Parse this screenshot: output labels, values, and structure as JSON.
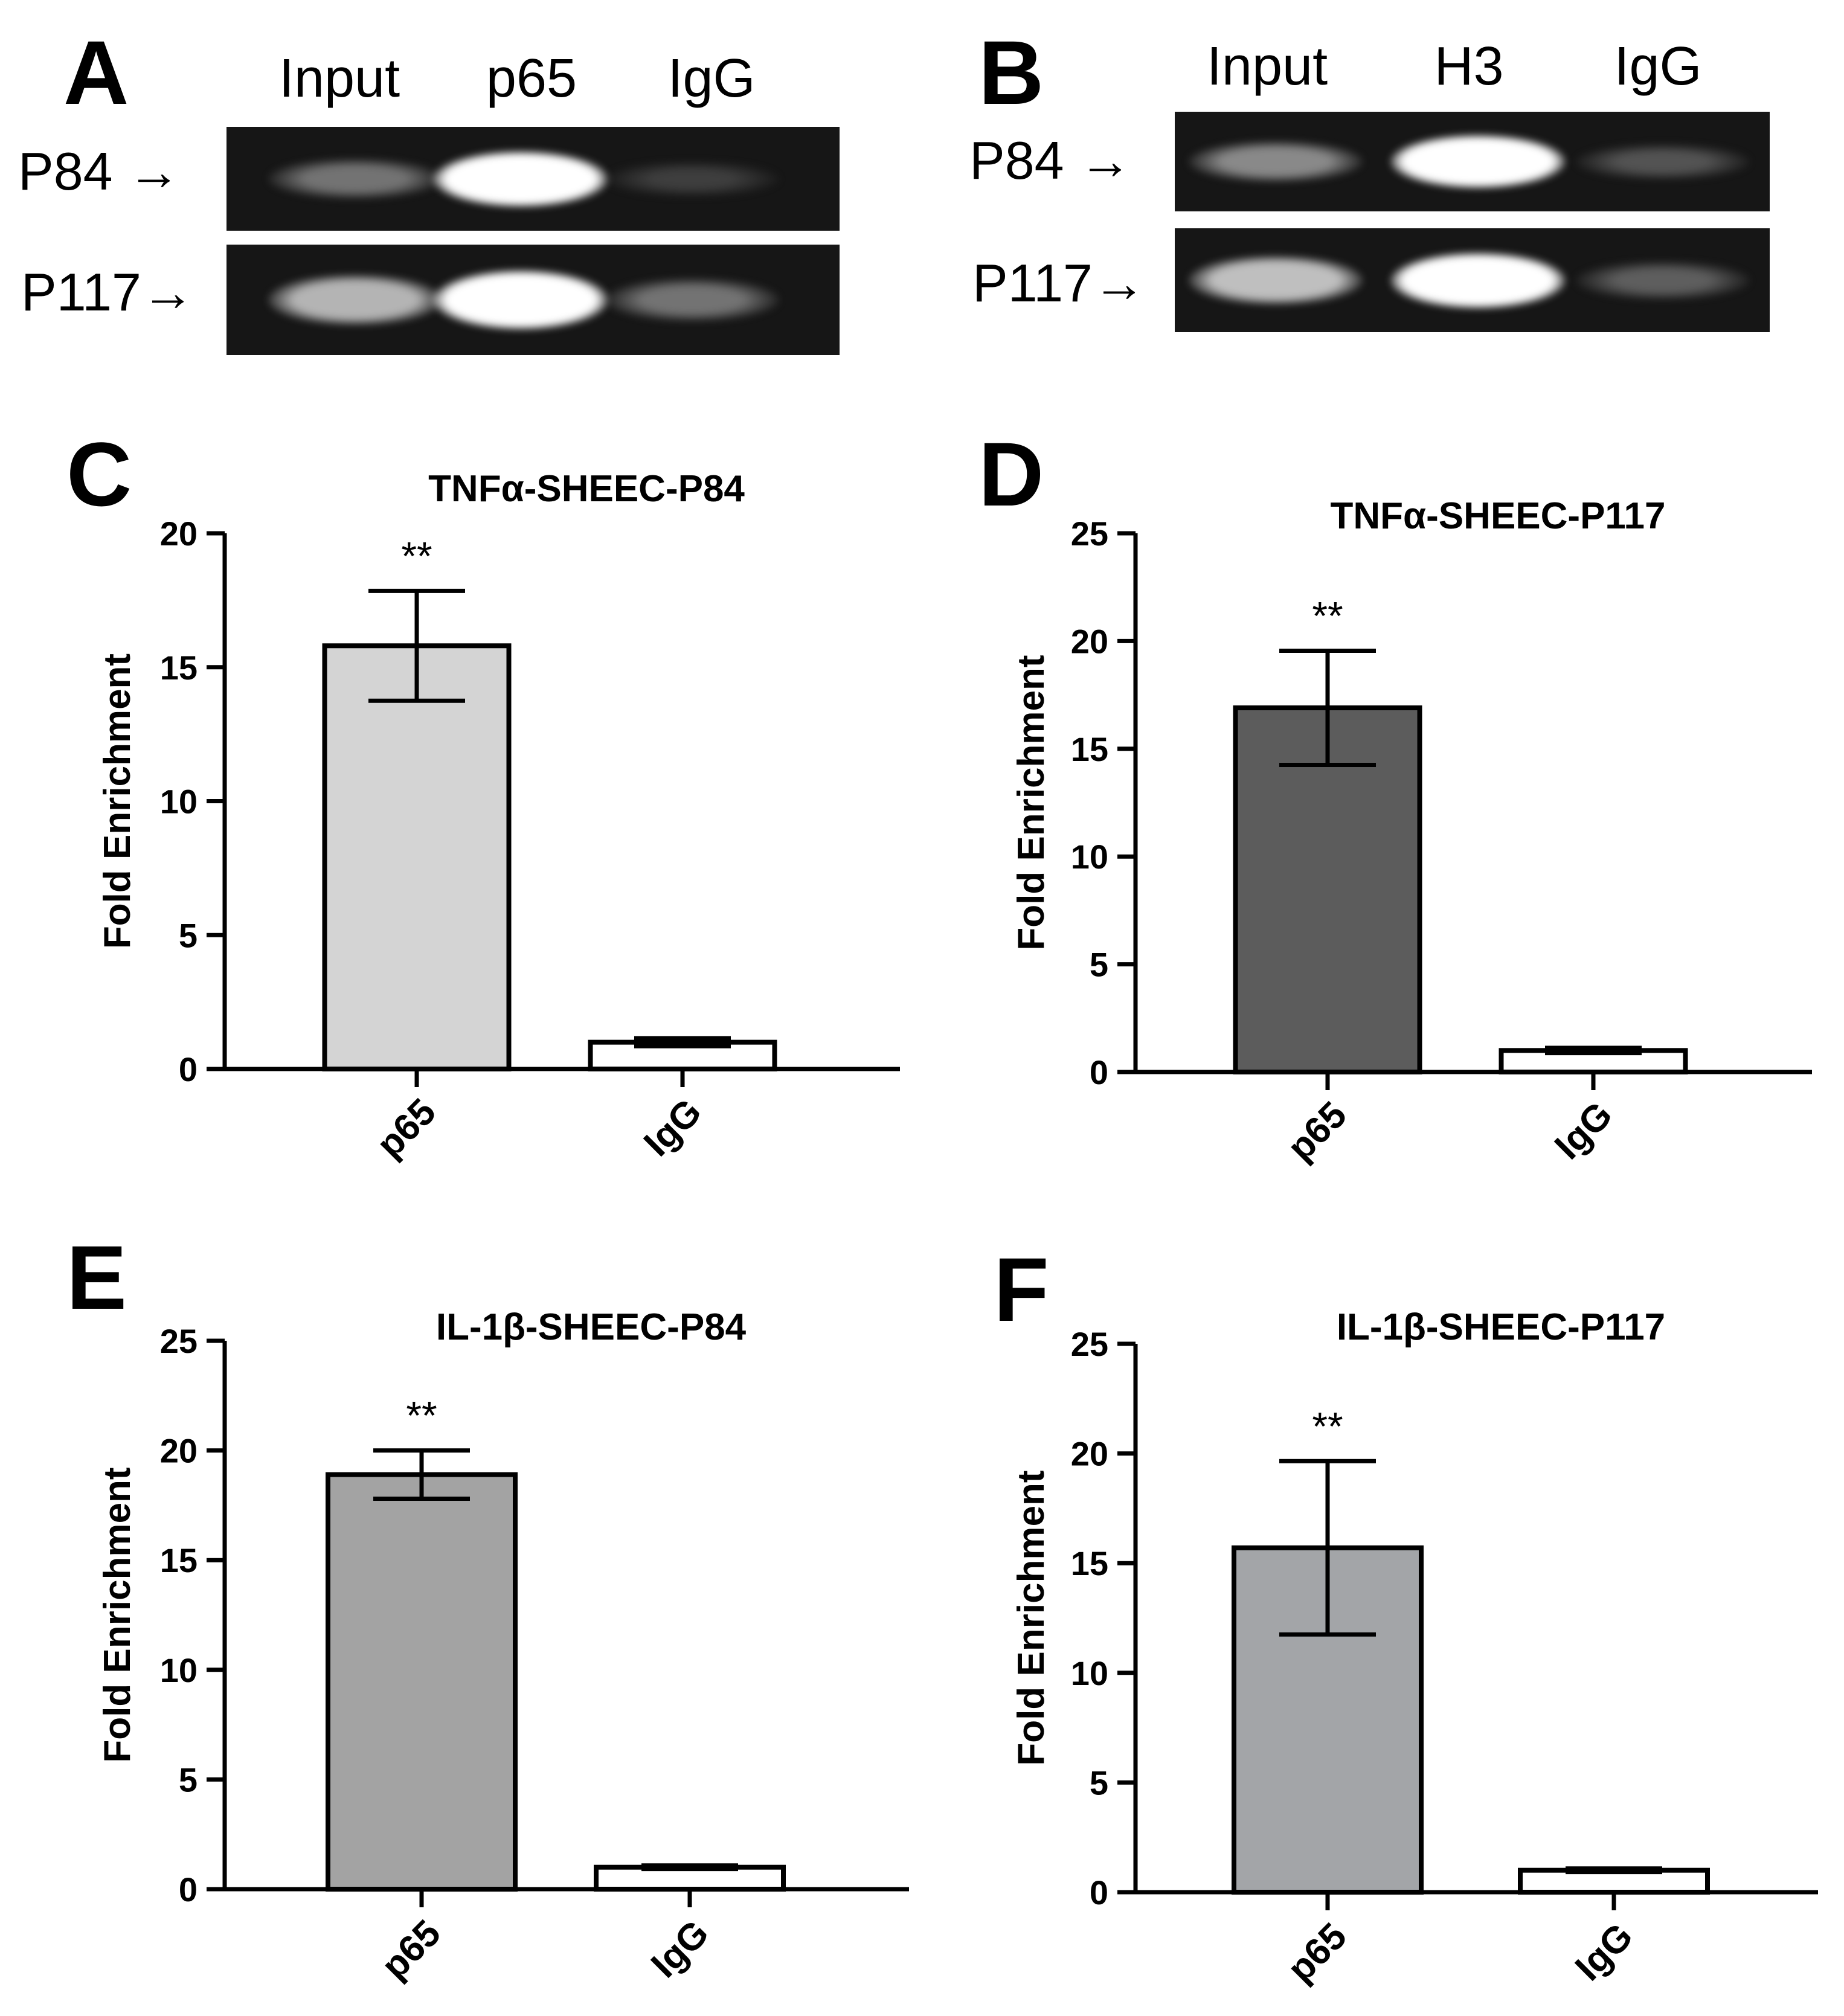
{
  "gels": [
    {
      "letter": "A",
      "lanes": [
        "Input",
        "p65",
        "IgG"
      ],
      "rows": [
        {
          "label": "P84 →",
          "intensity": [
            0.35,
            1.0,
            0.1
          ]
        },
        {
          "label": "P117→",
          "intensity": [
            0.65,
            1.0,
            0.35
          ]
        }
      ]
    },
    {
      "letter": "B",
      "lanes": [
        "Input",
        "H3",
        "IgG"
      ],
      "rows": [
        {
          "label": "P84 →",
          "intensity": [
            0.45,
            1.0,
            0.2
          ]
        },
        {
          "label": "P117→",
          "intensity": [
            0.7,
            1.0,
            0.25
          ]
        }
      ]
    }
  ],
  "chart_data": [
    {
      "letter": "C",
      "type": "bar",
      "title": "TNFα-SHEEC-P84",
      "ylabel": "Fold Enrichment",
      "categories": [
        "p65",
        "IgG"
      ],
      "values": [
        15.8,
        1.0
      ],
      "errors": [
        2.05,
        0.15
      ],
      "significance": [
        "**",
        ""
      ],
      "ylim": [
        0,
        20
      ],
      "yticks": [
        "0",
        "5",
        "10",
        "15",
        "20"
      ],
      "bar_colors": [
        "#d4d4d4",
        "#ffffff"
      ]
    },
    {
      "letter": "D",
      "type": "bar",
      "title": "TNFα-SHEEC-P117",
      "ylabel": "Fold Enrichment",
      "categories": [
        "p65",
        "IgG"
      ],
      "values": [
        16.9,
        1.0
      ],
      "errors": [
        2.65,
        0.12
      ],
      "significance": [
        "**",
        ""
      ],
      "ylim": [
        0,
        25
      ],
      "yticks": [
        "0",
        "5",
        "10",
        "15",
        "20",
        "25"
      ],
      "bar_colors": [
        "#5c5c5c",
        "#ffffff"
      ]
    },
    {
      "letter": "E",
      "type": "bar",
      "title": "IL-1β-SHEEC-P84",
      "ylabel": "Fold Enrichment",
      "categories": [
        "p65",
        "IgG"
      ],
      "values": [
        18.9,
        1.0
      ],
      "errors": [
        1.1,
        0.08
      ],
      "significance": [
        "**",
        ""
      ],
      "ylim": [
        0,
        25
      ],
      "yticks": [
        "0",
        "5",
        "10",
        "15",
        "20",
        "25"
      ],
      "bar_colors": [
        "#a3a3a3",
        "#ffffff"
      ]
    },
    {
      "letter": "F",
      "type": "bar",
      "title": "IL-1β-SHEEC-P117",
      "ylabel": "Fold Enrichment",
      "categories": [
        "p65",
        "IgG"
      ],
      "values": [
        15.7,
        1.0
      ],
      "errors": [
        3.95,
        0.08
      ],
      "significance": [
        "**",
        ""
      ],
      "ylim": [
        0,
        25
      ],
      "yticks": [
        "0",
        "5",
        "10",
        "15",
        "20",
        "25"
      ],
      "bar_colors": [
        "#a3a5a8",
        "#ffffff"
      ]
    }
  ]
}
